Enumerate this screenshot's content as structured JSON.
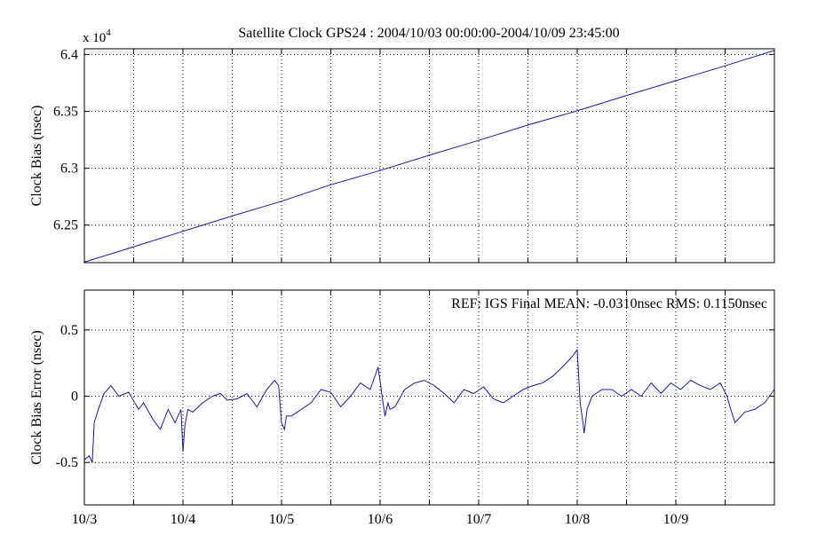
{
  "colors": {
    "series": "#1a1aa6",
    "axis": "#000000",
    "grid": "#000000",
    "background": "#ffffff"
  },
  "chart_data": [
    {
      "type": "line",
      "title": "Satellite Clock GPS24 : 2004/10/03 00:00:00-2004/10/09 23:45:00",
      "ylabel": "Clock Bias (nsec)",
      "multiplier_label": "x 10",
      "multiplier_exponent": "4",
      "x_unit": "days since 2004/10/03 00:00",
      "xlim": [
        0,
        7
      ],
      "ylim": [
        62170,
        64050
      ],
      "yticks": [
        62500,
        63000,
        63500,
        64000
      ],
      "yticklabels": [
        "6.25",
        "6.3",
        "6.35",
        "6.4"
      ],
      "xticks": [
        0.5,
        1,
        1.5,
        2,
        2.5,
        3,
        3.5,
        4,
        4.5,
        5,
        5.5,
        6,
        6.5
      ],
      "grid": true,
      "series": [
        {
          "x": [
            0,
            0.5,
            1,
            1.5,
            2,
            2.5,
            3,
            3.5,
            4,
            4.5,
            5,
            5.5,
            6,
            6.5,
            7
          ],
          "values": [
            62175,
            62310,
            62445,
            62580,
            62710,
            62855,
            62980,
            63115,
            63245,
            63380,
            63505,
            63640,
            63770,
            63900,
            64035
          ]
        }
      ]
    },
    {
      "type": "line",
      "annotation": "REF: IGS Final  MEAN: -0.0310nsec RMS: 0.1150nsec",
      "ylabel": "Clock Bias Error (nsec)",
      "x_unit": "days since 2004/10/03 00:00",
      "xlim": [
        0,
        7
      ],
      "ylim": [
        -0.82,
        0.8
      ],
      "yticks": [
        -0.5,
        0,
        0.5
      ],
      "yticklabels": [
        "-0.5",
        "0",
        "0.5"
      ],
      "xticks": [
        0,
        1,
        2,
        3,
        4,
        5,
        6
      ],
      "xticklabels": [
        "10/3",
        "10/4",
        "10/5",
        "10/6",
        "10/7",
        "10/8",
        "10/9"
      ],
      "minor_xticks": [
        0.5,
        1.5,
        2.5,
        3.5,
        4.5,
        5.5,
        6.5
      ],
      "grid": true,
      "series": [
        {
          "x": [
            0,
            0.05,
            0.08,
            0.1,
            0.15,
            0.2,
            0.27,
            0.35,
            0.45,
            0.55,
            0.6,
            0.7,
            0.77,
            0.85,
            0.92,
            0.98,
            1.0,
            1.02,
            1.05,
            1.1,
            1.2,
            1.3,
            1.38,
            1.45,
            1.55,
            1.65,
            1.75,
            1.85,
            1.93,
            1.97,
            2.0,
            2.03,
            2.05,
            2.1,
            2.2,
            2.3,
            2.4,
            2.5,
            2.6,
            2.7,
            2.8,
            2.9,
            2.98,
            3.03,
            3.05,
            3.08,
            3.1,
            3.15,
            3.25,
            3.35,
            3.45,
            3.55,
            3.65,
            3.75,
            3.85,
            3.95,
            4.05,
            4.15,
            4.25,
            4.35,
            4.45,
            4.55,
            4.65,
            4.75,
            4.85,
            4.95,
            5.0,
            5.03,
            5.05,
            5.07,
            5.1,
            5.15,
            5.25,
            5.35,
            5.45,
            5.55,
            5.65,
            5.75,
            5.85,
            5.95,
            6.05,
            6.15,
            6.25,
            6.35,
            6.45,
            6.52,
            6.55,
            6.6,
            6.7,
            6.8,
            6.9,
            7.0
          ],
          "values": [
            -0.48,
            -0.45,
            -0.5,
            -0.2,
            -0.08,
            0.02,
            0.08,
            0.0,
            0.03,
            -0.1,
            -0.05,
            -0.18,
            -0.25,
            -0.1,
            -0.2,
            -0.1,
            -0.42,
            -0.22,
            -0.1,
            -0.12,
            -0.05,
            0.0,
            0.02,
            -0.03,
            -0.02,
            0.02,
            -0.08,
            0.05,
            0.12,
            0.08,
            -0.2,
            -0.25,
            -0.15,
            -0.15,
            -0.1,
            -0.05,
            0.05,
            0.03,
            -0.08,
            0.0,
            0.1,
            0.05,
            0.22,
            -0.05,
            -0.15,
            -0.05,
            -0.1,
            -0.08,
            0.05,
            0.1,
            0.12,
            0.08,
            0.02,
            -0.05,
            0.05,
            0.02,
            0.07,
            -0.02,
            -0.05,
            0.0,
            0.05,
            0.08,
            0.1,
            0.15,
            0.22,
            0.3,
            0.35,
            -0.05,
            -0.15,
            -0.28,
            -0.1,
            0.0,
            0.05,
            0.05,
            0.0,
            0.05,
            0.0,
            0.1,
            0.02,
            0.1,
            0.05,
            0.12,
            0.08,
            0.05,
            0.1,
            0.0,
            -0.08,
            -0.2,
            -0.12,
            -0.1,
            -0.05,
            0.05
          ]
        }
      ]
    }
  ]
}
